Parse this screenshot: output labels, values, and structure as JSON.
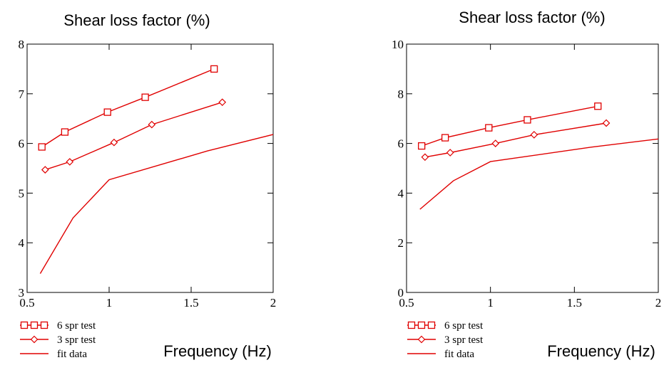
{
  "chart_data": [
    {
      "type": "line",
      "title": "Shear loss factor (%)",
      "xlabel": "Frequency (Hz)",
      "ylabel": "",
      "xlim": [
        0.5,
        2
      ],
      "ylim": [
        3,
        8
      ],
      "xticks": [
        0.5,
        1,
        1.5,
        2
      ],
      "xtick_labels": [
        "0.5",
        "1",
        "1.5",
        "2"
      ],
      "yticks": [
        3,
        4,
        5,
        6,
        7,
        8
      ],
      "ytick_labels": [
        "3",
        "4",
        "5",
        "6",
        "7",
        "8"
      ],
      "grid": false,
      "legend_position": "bottom-left",
      "series": [
        {
          "name": "6 spr test",
          "marker": "square",
          "color": "#e00000",
          "x": [
            0.59,
            0.73,
            0.99,
            1.22,
            1.64
          ],
          "y": [
            5.93,
            6.23,
            6.63,
            6.93,
            7.5
          ]
        },
        {
          "name": "3 spr test",
          "marker": "diamond",
          "color": "#e00000",
          "x": [
            0.61,
            0.76,
            1.03,
            1.26,
            1.69
          ],
          "y": [
            5.47,
            5.63,
            6.02,
            6.38,
            6.83
          ]
        },
        {
          "name": "fit data",
          "marker": "none",
          "color": "#e00000",
          "x": [
            0.58,
            0.78,
            1.0,
            1.6,
            2.0
          ],
          "y": [
            3.38,
            4.5,
            5.27,
            5.85,
            6.18
          ]
        }
      ]
    },
    {
      "type": "line",
      "title": "Shear loss factor (%)",
      "xlabel": "Frequency (Hz)",
      "ylabel": "",
      "xlim": [
        0.5,
        2
      ],
      "ylim": [
        0,
        10
      ],
      "xticks": [
        0.5,
        1,
        1.5,
        2
      ],
      "xtick_labels": [
        "0.5",
        "1",
        "1.5",
        "2"
      ],
      "yticks": [
        0,
        2,
        4,
        6,
        8,
        10
      ],
      "ytick_labels": [
        "0",
        "2",
        "4",
        "6",
        "8",
        "10"
      ],
      "grid": false,
      "legend_position": "bottom-left",
      "series": [
        {
          "name": "6 spr test",
          "marker": "square",
          "color": "#e00000",
          "x": [
            0.59,
            0.73,
            0.99,
            1.22,
            1.64
          ],
          "y": [
            5.9,
            6.23,
            6.63,
            6.95,
            7.5
          ]
        },
        {
          "name": "3 spr test",
          "marker": "diamond",
          "color": "#e00000",
          "x": [
            0.61,
            0.76,
            1.03,
            1.26,
            1.69
          ],
          "y": [
            5.45,
            5.63,
            6.0,
            6.35,
            6.82
          ]
        },
        {
          "name": "fit data",
          "marker": "none",
          "color": "#e00000",
          "x": [
            0.58,
            0.78,
            1.0,
            1.6,
            2.0
          ],
          "y": [
            3.35,
            4.5,
            5.27,
            5.85,
            6.18
          ]
        }
      ]
    }
  ]
}
